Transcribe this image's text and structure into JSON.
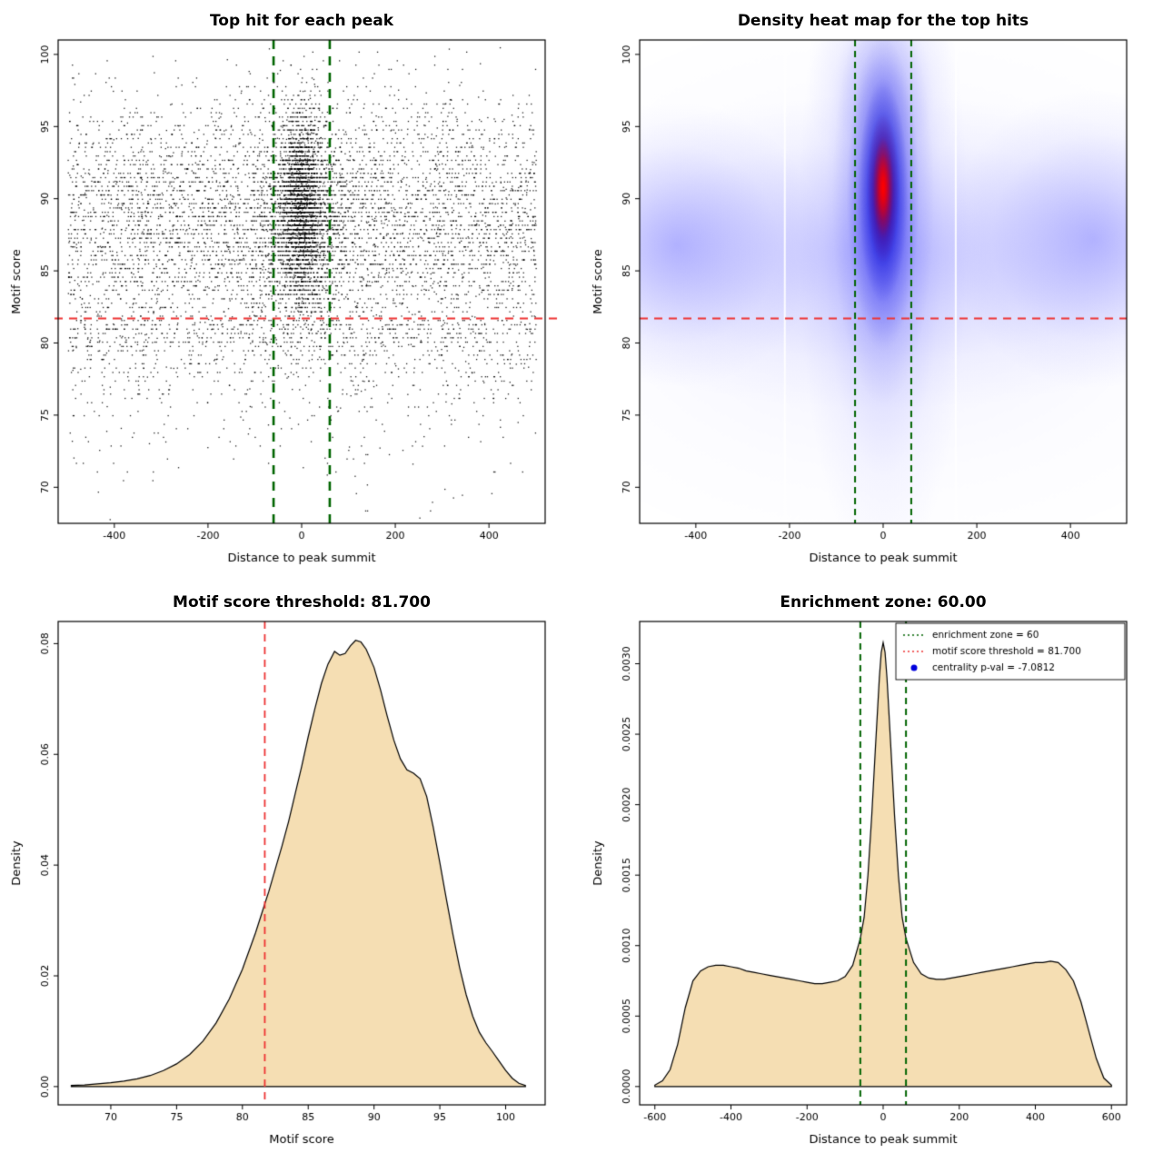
{
  "colors": {
    "background": "#ffffff",
    "point_black": "#000000",
    "zone_green": "#006400",
    "threshold_red": "#ee3333",
    "density_fill": "#f5deb3",
    "density_stroke": "#000000",
    "legend_point_blue": "#0000dd"
  },
  "chart_data": [
    {
      "canvas": "scatter-canvas",
      "type": "scatter",
      "title": "Top hit for each peak",
      "xlabel": "Distance to peak summit",
      "ylabel": "Motif score",
      "xlim": [
        -520,
        520
      ],
      "ylim": [
        67.5,
        101
      ],
      "xticks": [
        -400,
        -200,
        0,
        200,
        400
      ],
      "xtick_labels": [
        "-400",
        "-200",
        "0",
        "200",
        "400"
      ],
      "yticks": [
        70,
        75,
        80,
        85,
        90,
        95,
        100
      ],
      "ytick_labels": [
        "70",
        "75",
        "80",
        "85",
        "90",
        "95",
        "100"
      ],
      "points": {
        "seed": 7,
        "quantize_step": 0.3,
        "quantize_frac": 0.85,
        "groups": [
          {
            "n": 5200,
            "x_dist": "uniform",
            "x_range": [
              -500,
              500
            ],
            "y_mean": 88.3,
            "y_sd": 4.3
          },
          {
            "n": 900,
            "x_dist": "uniform",
            "x_range": [
              -500,
              500
            ],
            "y_mean": 81.5,
            "y_tail": 3.2
          },
          {
            "n": 1800,
            "x_dist": "normal",
            "x_sd": 30,
            "y_mean": 89.2,
            "y_sd": 3.3
          },
          {
            "n": 1000,
            "x_dist": "normal",
            "x_sd": 16,
            "y_mean": 89.6,
            "y_sd": 3.0
          },
          {
            "n": 700,
            "x_dist": "normal",
            "x_sd": 70,
            "y_mean": 88.3,
            "y_sd": 4.0
          }
        ]
      },
      "vlines": [
        {
          "x": -60,
          "color": "#006400",
          "dash": [
            10,
            8
          ],
          "width": 2.6
        },
        {
          "x": 60,
          "color": "#006400",
          "dash": [
            10,
            8
          ],
          "width": 2.6
        }
      ],
      "hlines": [
        {
          "y": 81.7,
          "color": "#ee3333",
          "dash": [
            9,
            7
          ],
          "width": 2.2,
          "ov": [
            4,
            14
          ]
        }
      ]
    },
    {
      "canvas": "heatmap-canvas",
      "type": "heatmap",
      "title": "Density heat map for the top hits",
      "xlabel": "Distance to peak summit",
      "ylabel": "Motif score",
      "xlim": [
        -520,
        520
      ],
      "ylim": [
        67.5,
        101
      ],
      "xticks": [
        -400,
        -200,
        0,
        200,
        400
      ],
      "xtick_labels": [
        "-400",
        "-200",
        "0",
        "200",
        "400"
      ],
      "yticks": [
        70,
        75,
        80,
        85,
        90,
        95,
        100
      ],
      "ytick_labels": [
        "70",
        "75",
        "80",
        "85",
        "90",
        "95",
        "100"
      ],
      "blobs": [
        {
          "cx": 0,
          "cy": 84.0,
          "sx": 340,
          "sy": 7.5,
          "color": "#6666ff",
          "alpha": 0.1
        },
        {
          "cx": 0,
          "cy": 86.3,
          "sx": 330,
          "sy": 4.2,
          "color": "#4040ff",
          "alpha": 0.26
        },
        {
          "cx": -440,
          "cy": 86.8,
          "sx": 120,
          "sy": 3.8,
          "color": "#3333ff",
          "alpha": 0.3
        },
        {
          "cx": 450,
          "cy": 87.2,
          "sx": 120,
          "sy": 4.0,
          "color": "#3333ff",
          "alpha": 0.3
        },
        {
          "cx": 0,
          "cy": 88.0,
          "sx": 70,
          "sy": 9.5,
          "color": "#4444ff",
          "alpha": 0.3
        },
        {
          "cx": 0,
          "cy": 97.5,
          "sx": 62,
          "sy": 2.6,
          "color": "#5555ff",
          "alpha": 0.22
        },
        {
          "cx": 0,
          "cy": 90.0,
          "sx": 42,
          "sy": 5.5,
          "color": "#2222ee",
          "alpha": 0.55
        },
        {
          "cx": 0,
          "cy": 90.3,
          "sx": 30,
          "sy": 4.2,
          "color": "#0000dd",
          "alpha": 0.75
        },
        {
          "cx": 0,
          "cy": 90.6,
          "sx": 20,
          "sy": 3.0,
          "color": "#0000bb",
          "alpha": 0.85
        },
        {
          "cx": 0,
          "cy": 90.7,
          "sx": 13,
          "sy": 2.0,
          "color": "#ee0000",
          "alpha": 0.9
        },
        {
          "cx": 0,
          "cy": 90.8,
          "sx": 8,
          "sy": 1.3,
          "color": "#ff0000",
          "alpha": 1.0
        }
      ],
      "white_lines": [
        -210,
        155
      ],
      "vlines": [
        {
          "x": -60,
          "color": "#006400",
          "dash": [
            7,
            5
          ],
          "width": 2
        },
        {
          "x": 60,
          "color": "#006400",
          "dash": [
            7,
            5
          ],
          "width": 2
        }
      ],
      "hlines": [
        {
          "y": 81.7,
          "color": "#ee3333",
          "dash": [
            9,
            7
          ],
          "width": 1.8,
          "ov": [
            0,
            0
          ]
        }
      ]
    },
    {
      "canvas": "score-density-canvas",
      "type": "area",
      "title": "Motif score threshold: 81.700",
      "xlabel": "Motif score",
      "ylabel": "Density",
      "xlim": [
        66,
        103
      ],
      "ylim": [
        -0.0033,
        0.084
      ],
      "xticks": [
        70,
        75,
        80,
        85,
        90,
        95,
        100
      ],
      "xtick_labels": [
        "70",
        "75",
        "80",
        "85",
        "90",
        "95",
        "100"
      ],
      "yticks": [
        0,
        0.02,
        0.04,
        0.06,
        0.08
      ],
      "ytick_labels": [
        "0.00",
        "0.02",
        "0.04",
        "0.06",
        "0.08"
      ],
      "fill": "#f5deb3",
      "points_xy": [
        [
          67,
          0.0002
        ],
        [
          68,
          0.0003
        ],
        [
          69,
          0.0005
        ],
        [
          70,
          0.0007
        ],
        [
          71,
          0.001
        ],
        [
          72,
          0.0014
        ],
        [
          73,
          0.002
        ],
        [
          74,
          0.0029
        ],
        [
          75,
          0.0041
        ],
        [
          76,
          0.0058
        ],
        [
          77,
          0.0082
        ],
        [
          78,
          0.0115
        ],
        [
          79,
          0.0158
        ],
        [
          80,
          0.0212
        ],
        [
          81,
          0.0278
        ],
        [
          81.7,
          0.033
        ],
        [
          82,
          0.0352
        ],
        [
          82.5,
          0.0393
        ],
        [
          83,
          0.0434
        ],
        [
          83.5,
          0.0478
        ],
        [
          84,
          0.0528
        ],
        [
          84.5,
          0.0578
        ],
        [
          85,
          0.0632
        ],
        [
          85.5,
          0.0682
        ],
        [
          86,
          0.0728
        ],
        [
          86.5,
          0.0763
        ],
        [
          87,
          0.0786
        ],
        [
          87.4,
          0.0779
        ],
        [
          87.8,
          0.0782
        ],
        [
          88.2,
          0.0796
        ],
        [
          88.6,
          0.0806
        ],
        [
          89,
          0.0803
        ],
        [
          89.4,
          0.079
        ],
        [
          90,
          0.0757
        ],
        [
          90.5,
          0.0716
        ],
        [
          91,
          0.0669
        ],
        [
          91.5,
          0.0626
        ],
        [
          92,
          0.0592
        ],
        [
          92.5,
          0.0572
        ],
        [
          93,
          0.0566
        ],
        [
          93.5,
          0.0556
        ],
        [
          94,
          0.0524
        ],
        [
          94.5,
          0.0468
        ],
        [
          95,
          0.0404
        ],
        [
          95.5,
          0.0338
        ],
        [
          96,
          0.0274
        ],
        [
          96.5,
          0.0215
        ],
        [
          97,
          0.0166
        ],
        [
          97.5,
          0.0127
        ],
        [
          98,
          0.0098
        ],
        [
          98.5,
          0.0079
        ],
        [
          99,
          0.0063
        ],
        [
          99.5,
          0.0046
        ],
        [
          100,
          0.0029
        ],
        [
          100.5,
          0.0015
        ],
        [
          101,
          0.0006
        ],
        [
          101.5,
          0.0002
        ]
      ],
      "vlines": [
        {
          "x": 81.7,
          "color": "#ee3333",
          "dash": [
            8,
            6
          ],
          "width": 1.8
        }
      ],
      "hlines": []
    },
    {
      "canvas": "distance-density-canvas",
      "type": "area",
      "title": "Enrichment zone: 60.00",
      "xlabel": "Distance to peak summit",
      "ylabel": "Density",
      "xlim": [
        -640,
        640
      ],
      "ylim": [
        -0.00013,
        0.0033
      ],
      "xticks": [
        -600,
        -400,
        -200,
        0,
        200,
        400,
        600
      ],
      "xtick_labels": [
        "-600",
        "-400",
        "-200",
        "0",
        "200",
        "400",
        "600"
      ],
      "yticks": [
        0,
        0.0005,
        0.001,
        0.0015,
        0.002,
        0.0025,
        0.003
      ],
      "ytick_labels": [
        "0.0000",
        "0.0005",
        "0.0010",
        "0.0015",
        "0.0020",
        "0.0025",
        "0.0030"
      ],
      "fill": "#f5deb3",
      "points_xy": [
        [
          -600,
          1e-05
        ],
        [
          -580,
          4e-05
        ],
        [
          -560,
          0.00012
        ],
        [
          -540,
          0.0003
        ],
        [
          -520,
          0.00056
        ],
        [
          -500,
          0.00075
        ],
        [
          -480,
          0.00082
        ],
        [
          -460,
          0.00085
        ],
        [
          -440,
          0.00086
        ],
        [
          -420,
          0.00086
        ],
        [
          -400,
          0.00085
        ],
        [
          -380,
          0.00084
        ],
        [
          -360,
          0.00082
        ],
        [
          -340,
          0.00081
        ],
        [
          -320,
          0.0008
        ],
        [
          -300,
          0.00079
        ],
        [
          -280,
          0.00078
        ],
        [
          -260,
          0.00077
        ],
        [
          -240,
          0.00076
        ],
        [
          -220,
          0.00075
        ],
        [
          -200,
          0.00074
        ],
        [
          -180,
          0.00073
        ],
        [
          -160,
          0.00073
        ],
        [
          -140,
          0.00074
        ],
        [
          -120,
          0.00075
        ],
        [
          -100,
          0.00078
        ],
        [
          -80,
          0.00086
        ],
        [
          -60,
          0.00105
        ],
        [
          -50,
          0.0012
        ],
        [
          -40,
          0.0015
        ],
        [
          -30,
          0.00192
        ],
        [
          -20,
          0.00242
        ],
        [
          -10,
          0.0029
        ],
        [
          -5,
          0.00308
        ],
        [
          0,
          0.00315
        ],
        [
          5,
          0.00308
        ],
        [
          10,
          0.0029
        ],
        [
          20,
          0.00242
        ],
        [
          30,
          0.00192
        ],
        [
          40,
          0.0015
        ],
        [
          50,
          0.0012
        ],
        [
          60,
          0.00105
        ],
        [
          80,
          0.00088
        ],
        [
          100,
          0.0008
        ],
        [
          120,
          0.00077
        ],
        [
          140,
          0.00076
        ],
        [
          160,
          0.00076
        ],
        [
          180,
          0.00077
        ],
        [
          200,
          0.00078
        ],
        [
          220,
          0.00079
        ],
        [
          240,
          0.0008
        ],
        [
          260,
          0.00081
        ],
        [
          280,
          0.00082
        ],
        [
          300,
          0.00083
        ],
        [
          320,
          0.00084
        ],
        [
          340,
          0.00085
        ],
        [
          360,
          0.00086
        ],
        [
          380,
          0.00087
        ],
        [
          400,
          0.00088
        ],
        [
          420,
          0.00088
        ],
        [
          440,
          0.00089
        ],
        [
          460,
          0.00088
        ],
        [
          480,
          0.00083
        ],
        [
          500,
          0.00075
        ],
        [
          520,
          0.0006
        ],
        [
          540,
          0.0004
        ],
        [
          560,
          0.0002
        ],
        [
          580,
          6e-05
        ],
        [
          600,
          1e-05
        ]
      ],
      "vlines": [
        {
          "x": -60,
          "color": "#006400",
          "dash": [
            7,
            5
          ],
          "width": 2
        },
        {
          "x": 60,
          "color": "#006400",
          "dash": [
            7,
            5
          ],
          "width": 2
        }
      ],
      "hlines": [],
      "legend": {
        "items": [
          {
            "type": "line",
            "color": "#006400",
            "label": "enrichment zone = 60"
          },
          {
            "type": "line",
            "color": "#ee3333",
            "label": "motif score threshold = 81.700"
          },
          {
            "type": "point",
            "color": "#0000dd",
            "label": "centrality p-val = -7.0812"
          }
        ]
      }
    }
  ]
}
